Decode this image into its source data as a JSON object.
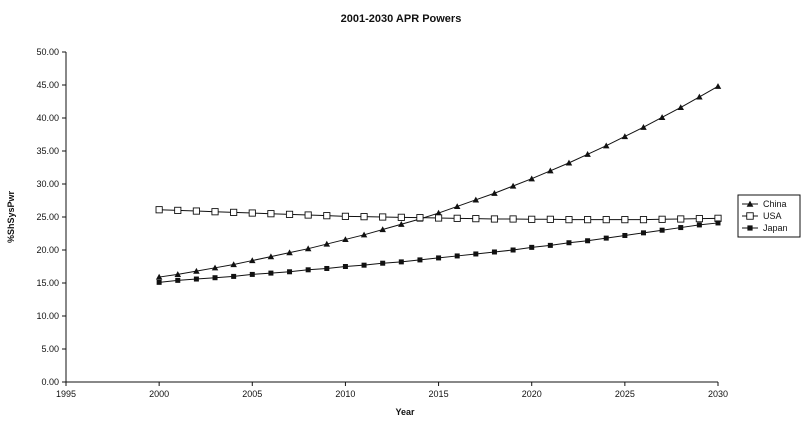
{
  "chart_data": {
    "type": "line",
    "title": "2001-2030 APR Powers",
    "xlabel": "Year",
    "ylabel": "%ShSysPwr",
    "xlim": [
      1995,
      2030
    ],
    "ylim": [
      0,
      50
    ],
    "x_ticks": [
      "1995",
      "2000",
      "2005",
      "2010",
      "2015",
      "2020",
      "2025",
      "2030"
    ],
    "y_ticks": [
      "0.00",
      "5.00",
      "10.00",
      "15.00",
      "20.00",
      "25.00",
      "30.00",
      "35.00",
      "40.00",
      "45.00",
      "50.00"
    ],
    "grid": false,
    "legend_position": "right",
    "x": [
      2000,
      2001,
      2002,
      2003,
      2004,
      2005,
      2006,
      2007,
      2008,
      2009,
      2010,
      2011,
      2012,
      2013,
      2014,
      2015,
      2016,
      2017,
      2018,
      2019,
      2020,
      2021,
      2022,
      2023,
      2024,
      2025,
      2026,
      2027,
      2028,
      2029,
      2030
    ],
    "series": [
      {
        "name": "China",
        "marker": "triangle",
        "color": "#111111",
        "values": [
          15.9,
          16.3,
          16.8,
          17.3,
          17.8,
          18.4,
          19.0,
          19.6,
          20.2,
          20.9,
          21.6,
          22.3,
          23.1,
          23.9,
          24.7,
          25.6,
          26.6,
          27.6,
          28.6,
          29.7,
          30.8,
          32.0,
          33.2,
          34.5,
          35.8,
          37.2,
          38.6,
          40.1,
          41.6,
          43.2,
          44.8
        ]
      },
      {
        "name": "USA",
        "marker": "open-square",
        "color": "#111111",
        "values": [
          26.1,
          26.0,
          25.9,
          25.8,
          25.7,
          25.6,
          25.5,
          25.4,
          25.3,
          25.2,
          25.1,
          25.05,
          25.0,
          24.95,
          24.9,
          24.85,
          24.8,
          24.75,
          24.7,
          24.7,
          24.65,
          24.65,
          24.6,
          24.6,
          24.6,
          24.6,
          24.6,
          24.65,
          24.7,
          24.75,
          24.8
        ]
      },
      {
        "name": "Japan",
        "marker": "square",
        "color": "#111111",
        "values": [
          15.1,
          15.4,
          15.6,
          15.8,
          16.0,
          16.3,
          16.5,
          16.7,
          17.0,
          17.2,
          17.5,
          17.7,
          18.0,
          18.2,
          18.5,
          18.8,
          19.1,
          19.4,
          19.7,
          20.0,
          20.4,
          20.7,
          21.1,
          21.4,
          21.8,
          22.2,
          22.6,
          23.0,
          23.4,
          23.8,
          24.1
        ]
      }
    ]
  }
}
